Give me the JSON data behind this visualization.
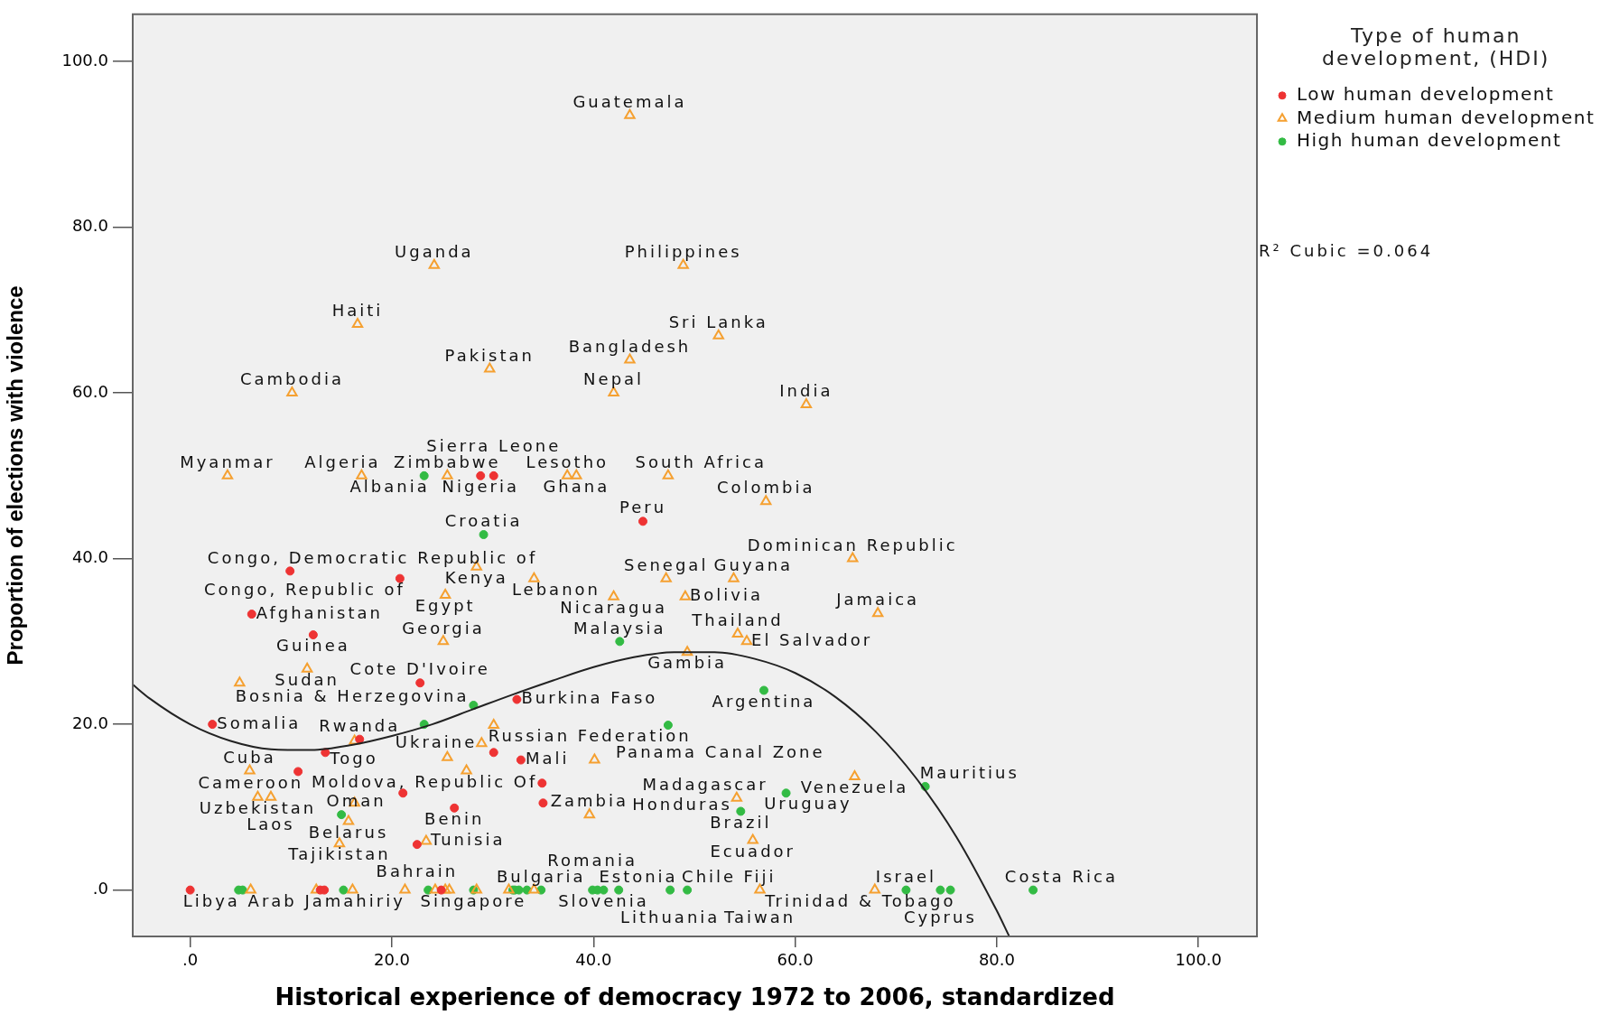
{
  "chart_data": {
    "type": "scatter",
    "xlabel": "Historical experience of democracy 1972 to 2006, standardized",
    "ylabel": "Proportion of elections with violence",
    "legend_title": "Type of human development, (HDI)",
    "legend": "right",
    "grid": false,
    "xlim": [
      -5.7,
      105.8
    ],
    "ylim": [
      -5.6,
      105.7
    ],
    "xticks": [
      {
        "value": 0,
        "label": ".0"
      },
      {
        "value": 20,
        "label": "20.0"
      },
      {
        "value": 40,
        "label": "40.0"
      },
      {
        "value": 60,
        "label": "60.0"
      },
      {
        "value": 80,
        "label": "80.0"
      },
      {
        "value": 100,
        "label": "100.0"
      }
    ],
    "yticks": [
      {
        "value": 0,
        "label": ".0"
      },
      {
        "value": 20,
        "label": "20.0"
      },
      {
        "value": 40,
        "label": "40.0"
      },
      {
        "value": 60,
        "label": "60.0"
      },
      {
        "value": 80,
        "label": "80.0"
      },
      {
        "value": 100,
        "label": "100.0"
      }
    ],
    "series": [
      {
        "name": "Low human development",
        "color": "#ee3333",
        "marker": "circle",
        "x": [
          28.8,
          30.1,
          44.9,
          9.9,
          20.8,
          6.1,
          12.2,
          22.8,
          32.4,
          2.2,
          16.8,
          13.4,
          30.1,
          32.8,
          10.7,
          21.1,
          26.2,
          34.9,
          35.0,
          22.5,
          0.0,
          12.9,
          13.3,
          24.9
        ],
        "values": [
          50.0,
          50.0,
          44.5,
          38.5,
          37.6,
          33.3,
          30.8,
          25.0,
          23.0,
          20.0,
          18.2,
          16.6,
          16.6,
          15.7,
          14.3,
          11.7,
          9.9,
          12.9,
          10.5,
          5.5,
          0.0,
          0.0,
          0.0,
          0.0
        ]
      },
      {
        "name": "Medium human development",
        "color": "#f5a030",
        "marker": "triangle",
        "x": [
          43.6,
          24.2,
          48.9,
          16.6,
          52.4,
          29.7,
          43.6,
          10.1,
          42.0,
          61.1,
          3.7,
          17.0,
          25.5,
          37.4,
          38.3,
          47.4,
          57.1,
          65.7,
          28.4,
          34.1,
          47.2,
          53.9,
          25.3,
          42.0,
          49.1,
          68.2,
          25.1,
          54.3,
          55.2,
          11.6,
          4.9,
          49.3,
          30.1,
          16.3,
          28.9,
          25.5,
          40.1,
          5.9,
          27.4,
          65.9,
          6.7,
          8.0,
          54.2,
          16.3,
          39.6,
          15.7,
          55.8,
          14.8,
          23.4,
          6.0,
          12.5,
          16.1,
          21.3,
          24.3,
          25.3,
          25.7,
          28.4,
          31.6,
          34.1,
          56.5,
          67.9
        ],
        "values": [
          93.5,
          75.4,
          75.4,
          68.3,
          66.9,
          62.9,
          64.0,
          60.0,
          60.0,
          58.6,
          50.0,
          50.0,
          50.0,
          50.0,
          50.0,
          50.0,
          46.9,
          40.0,
          39.0,
          37.6,
          37.6,
          37.6,
          35.6,
          35.4,
          35.4,
          33.4,
          30.0,
          30.9,
          30.0,
          26.7,
          25.0,
          28.7,
          19.9,
          18.0,
          17.7,
          16.0,
          15.7,
          14.4,
          14.4,
          13.7,
          11.2,
          11.2,
          11.1,
          10.5,
          9.1,
          8.3,
          6.0,
          5.6,
          5.9,
          0,
          0,
          0,
          0,
          0,
          0,
          0,
          0,
          0,
          0,
          0,
          0
        ]
      },
      {
        "name": "High human development",
        "color": "#33bb44",
        "marker": "circle",
        "x": [
          23.2,
          29.1,
          28.1,
          23.2,
          42.6,
          56.9,
          47.4,
          59.1,
          54.6,
          72.9,
          15.0,
          4.8,
          5.2,
          15.2,
          23.6,
          28.1,
          32.0,
          32.2,
          32.6,
          33.4,
          34.8,
          39.9,
          40.4,
          41.0,
          42.5,
          47.6,
          49.3,
          71.0,
          74.4,
          75.4,
          83.6
        ],
        "values": [
          50.0,
          42.9,
          22.3,
          20.0,
          30.0,
          24.1,
          19.9,
          11.7,
          9.5,
          12.5,
          9.1,
          0,
          0,
          0,
          0,
          0,
          0,
          0,
          0,
          0,
          0,
          0,
          0,
          0,
          0,
          0,
          0,
          0,
          0,
          0,
          0
        ]
      },
      {
        "type": "line",
        "color": "#222222",
        "marker": "none",
        "x": [
          -5.7,
          -4,
          0,
          4,
          8,
          12,
          16,
          20,
          24,
          28,
          32,
          36,
          40,
          44,
          48,
          52,
          56,
          60,
          64,
          68,
          72,
          76,
          80,
          81.2
        ],
        "values": [
          24.8,
          23.1,
          20.0,
          18.0,
          17.0,
          16.9,
          17.5,
          18.6,
          20.0,
          21.8,
          23.6,
          25.3,
          26.9,
          28.1,
          28.7,
          28.7,
          27.9,
          26.2,
          23.3,
          19.1,
          13.5,
          6.4,
          -2.5,
          -5.5
        ]
      }
    ],
    "annotations": [
      {
        "text": "Guatemala",
        "x": 43.6,
        "y": 93.5
      },
      {
        "text": "Uganda",
        "x": 24.2,
        "y": 75.4
      },
      {
        "text": "Philippines",
        "x": 48.9,
        "y": 75.4
      },
      {
        "text": "Haiti",
        "x": 16.6,
        "y": 68.3
      },
      {
        "text": "Sri Lanka",
        "x": 52.4,
        "y": 66.9
      },
      {
        "text": "Pakistan",
        "x": 29.7,
        "y": 62.9
      },
      {
        "text": "Cambodia",
        "x": 10.1,
        "y": 60.0
      },
      {
        "text": "Bangladesh",
        "x": 43.6,
        "y": 64.0
      },
      {
        "text": "India",
        "x": 61.1,
        "y": 58.6
      },
      {
        "text": "Nepal",
        "x": 42.0,
        "y": 60.0
      },
      {
        "text": "Myanmar",
        "x": 3.7,
        "y": 50.0
      },
      {
        "text": "Zimbabwe",
        "x": 25.5,
        "y": 50.0
      },
      {
        "text": "Lesotho",
        "x": 37.4,
        "y": 50.0
      },
      {
        "text": "Ghana",
        "x": 38.3,
        "y": 50.0
      },
      {
        "text": "South Africa",
        "x": 47.4,
        "y": 50.0
      },
      {
        "text": "Algeria",
        "x": 17.0,
        "y": 50.0
      },
      {
        "text": "Nigeria",
        "x": 28.8,
        "y": 50.0
      },
      {
        "text": "Sierra Leone",
        "x": 30.1,
        "y": 50.0
      },
      {
        "text": "Colombia",
        "x": 57.1,
        "y": 46.9
      },
      {
        "text": "Albania",
        "x": 23.2,
        "y": 50.0
      },
      {
        "text": "Croatia",
        "x": 29.1,
        "y": 42.9
      },
      {
        "text": "Peru",
        "x": 44.9,
        "y": 44.5
      },
      {
        "text": "Senegal",
        "x": 47.2,
        "y": 37.6
      },
      {
        "text": "Dominican Republic",
        "x": 65.7,
        "y": 40.0
      },
      {
        "text": "Congo, Democratic Republic of",
        "x": 9.9,
        "y": 38.5
      },
      {
        "text": "Kenya",
        "x": 28.4,
        "y": 39.0
      },
      {
        "text": "Lebanon",
        "x": 34.1,
        "y": 37.6
      },
      {
        "text": "Guyana",
        "x": 53.9,
        "y": 37.6
      },
      {
        "text": "Congo, Republic of",
        "x": 20.8,
        "y": 37.6
      },
      {
        "text": "Nicaragua",
        "x": 42.0,
        "y": 35.4
      },
      {
        "text": "Thailand",
        "x": 54.3,
        "y": 30.9
      },
      {
        "text": "Jamaica",
        "x": 68.2,
        "y": 33.4
      },
      {
        "text": "Egypt",
        "x": 25.3,
        "y": 35.6
      },
      {
        "text": "Afghanistan",
        "x": 6.1,
        "y": 33.3
      },
      {
        "text": "Bolivia",
        "x": 49.1,
        "y": 35.4
      },
      {
        "text": "Guinea",
        "x": 12.2,
        "y": 30.8
      },
      {
        "text": "Georgia",
        "x": 25.1,
        "y": 30.0
      },
      {
        "text": "El Salvador",
        "x": 55.2,
        "y": 30.0
      },
      {
        "text": "Sudan",
        "x": 11.6,
        "y": 26.7
      },
      {
        "text": "Malaysia",
        "x": 42.6,
        "y": 30.0
      },
      {
        "text": "Cote D'Ivoire",
        "x": 22.8,
        "y": 25.0
      },
      {
        "text": "Gambia",
        "x": 49.3,
        "y": 28.7
      },
      {
        "text": "Argentina",
        "x": 56.9,
        "y": 24.1
      },
      {
        "text": "Burkina Faso",
        "x": 32.4,
        "y": 23.0
      },
      {
        "text": "Bosnia & Herzegovina",
        "x": 28.1,
        "y": 22.3
      },
      {
        "text": "Russian Federation",
        "x": 30.1,
        "y": 19.9
      },
      {
        "text": "Panama Canal Zone",
        "x": 47.4,
        "y": 19.9
      },
      {
        "text": "Somalia",
        "x": 2.2,
        "y": 20.0
      },
      {
        "text": "Rwanda",
        "x": 16.8,
        "y": 18.2
      },
      {
        "text": "Ukraine",
        "x": 28.9,
        "y": 17.7
      },
      {
        "text": "Togo",
        "x": 13.4,
        "y": 16.6
      },
      {
        "text": "Mali",
        "x": 32.8,
        "y": 15.7
      },
      {
        "text": "Madagascar",
        "x": 54.2,
        "y": 11.1
      },
      {
        "text": "Venezuela",
        "x": 65.9,
        "y": 13.7
      },
      {
        "text": "Moldova, Republic Of",
        "x": 34.9,
        "y": 12.9
      },
      {
        "text": "Honduras",
        "x": 54.2,
        "y": 11.1
      },
      {
        "text": "Cuba",
        "x": 5.9,
        "y": 14.4
      },
      {
        "text": "Cameroon",
        "x": 10.7,
        "y": 14.3
      },
      {
        "text": "Mauritius",
        "x": 72.9,
        "y": 12.5
      },
      {
        "text": "Uzbekistan",
        "x": 6.7,
        "y": 11.2
      },
      {
        "text": "Laos",
        "x": 8.0,
        "y": 11.2
      },
      {
        "text": "Benin",
        "x": 26.2,
        "y": 9.9
      },
      {
        "text": "Brazil",
        "x": 54.6,
        "y": 9.5
      },
      {
        "text": "Uruguay",
        "x": 59.1,
        "y": 11.7
      },
      {
        "text": "Belarus",
        "x": 15.7,
        "y": 8.3
      },
      {
        "text": "Tunisia",
        "x": 23.4,
        "y": 5.9
      },
      {
        "text": "Zambia",
        "x": 39.6,
        "y": 9.1
      },
      {
        "text": "Ecuador",
        "x": 55.8,
        "y": 6.0
      },
      {
        "text": "Tajikistan",
        "x": 14.8,
        "y": 5.6
      },
      {
        "text": "Oman",
        "x": 15.0,
        "y": 9.1
      },
      {
        "text": "Bahrain",
        "x": 22.5,
        "y": 5.5
      },
      {
        "text": "Bulgaria",
        "x": 34.8,
        "y": 0
      },
      {
        "text": "Estonia",
        "x": 42.5,
        "y": 0
      },
      {
        "text": "Chile",
        "x": 49.3,
        "y": 0
      },
      {
        "text": "Fiji",
        "x": 56.5,
        "y": 0
      },
      {
        "text": "Israel",
        "x": 71.0,
        "y": 0
      },
      {
        "text": "Costa Rica",
        "x": 83.6,
        "y": 0
      },
      {
        "text": "Slovenia",
        "x": 41.0,
        "y": 0
      },
      {
        "text": "Trinidad & Tobago",
        "x": 75.4,
        "y": 0
      },
      {
        "text": "Libya Arab Jamahiriy",
        "x": 4.8,
        "y": 0
      },
      {
        "text": "Singapore",
        "x": 28.1,
        "y": 0
      },
      {
        "text": "Romania",
        "x": 39.9,
        "y": 0
      },
      {
        "text": "Lithuania",
        "x": 47.6,
        "y": 0
      },
      {
        "text": "Taiwan",
        "x": 56.5,
        "y": 0
      },
      {
        "text": "Cyprus",
        "x": 74.4,
        "y": 0
      },
      "R² Cubic =0.064"
    ]
  }
}
